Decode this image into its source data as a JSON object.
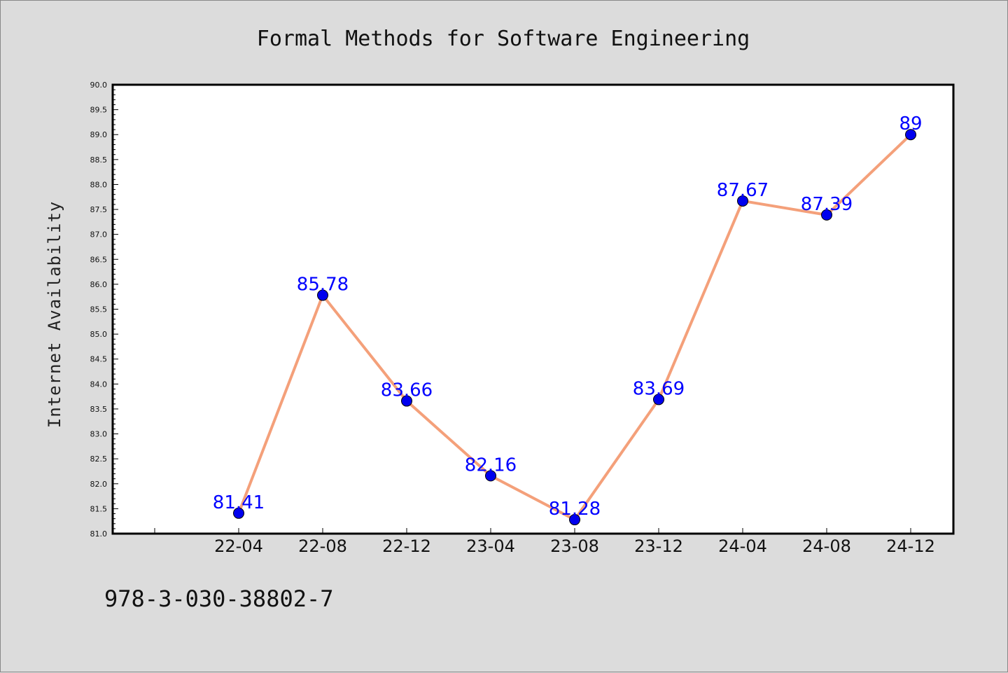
{
  "chart_data": {
    "type": "line",
    "title": "Formal Methods for Software Engineering",
    "xlabel": "",
    "ylabel": "Internet Availability",
    "categories": [
      "22-04",
      "22-08",
      "22-12",
      "23-04",
      "23-08",
      "23-12",
      "24-04",
      "24-08",
      "24-12"
    ],
    "series": [
      {
        "values": [
          81.41,
          85.78,
          83.66,
          82.16,
          81.28,
          83.69,
          87.67,
          87.39,
          89
        ]
      }
    ],
    "data_labels": [
      "81.41",
      "85.78",
      "83.66",
      "82.16",
      "81.28",
      "83.69",
      "87.67",
      "87.39",
      "89"
    ],
    "ylim": [
      81.0,
      90.0
    ],
    "yticks": [
      "81.0",
      "81.5",
      "82.0",
      "82.5",
      "83.0",
      "83.5",
      "84.0",
      "84.5",
      "85.0",
      "85.5",
      "86.0",
      "86.5",
      "87.0",
      "87.5",
      "88.0",
      "88.5",
      "89.0",
      "89.5",
      "90.0"
    ],
    "grid": false,
    "colors": {
      "line": "#f4a07a",
      "marker": "#0000ee",
      "label": "#0000ff",
      "background": "#dcdcdc",
      "plot_background": "#ffffff"
    }
  },
  "footer": {
    "text": "978-3-030-38802-7"
  }
}
